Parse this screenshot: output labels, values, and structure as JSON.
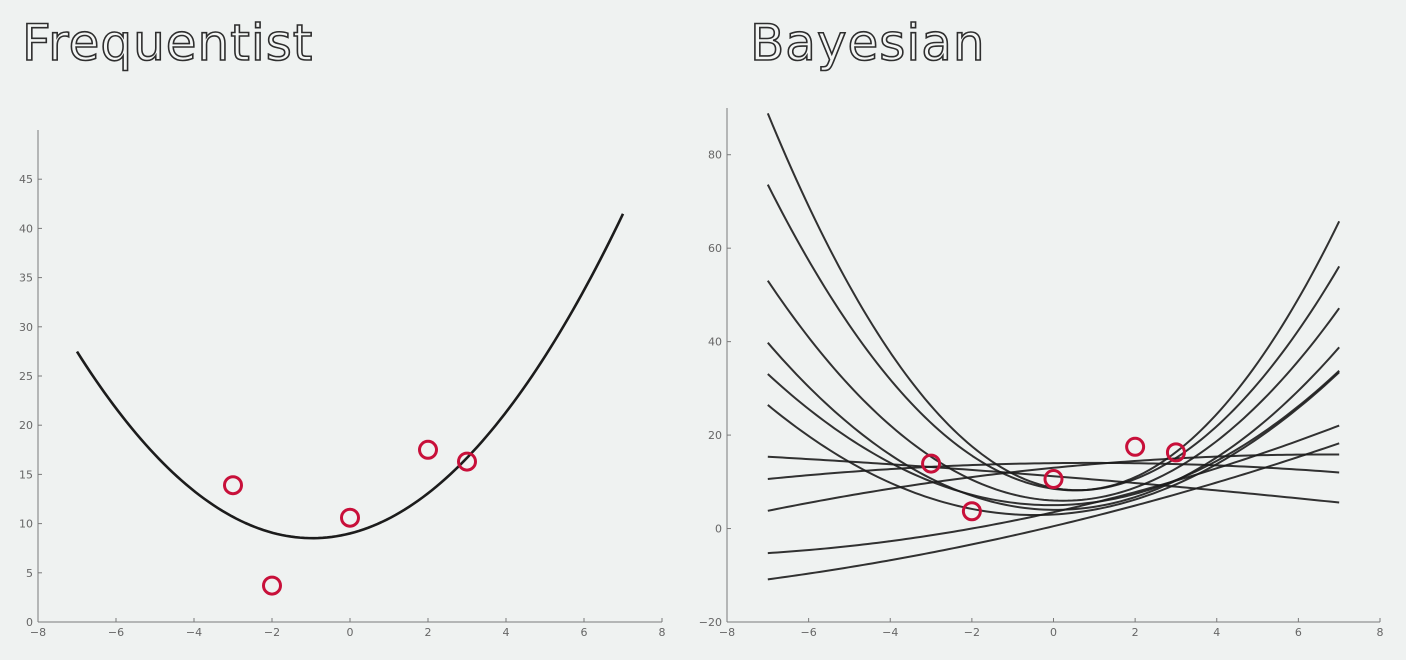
{
  "chart_data": [
    {
      "type": "scatter",
      "title": "Frequentist",
      "xlabel": "",
      "ylabel": "",
      "xlim": [
        -8,
        8
      ],
      "ylim": [
        0,
        50
      ],
      "xticks": [
        -8,
        -6,
        -4,
        -2,
        0,
        2,
        4,
        6,
        8
      ],
      "yticks": [
        0,
        5,
        10,
        15,
        20,
        25,
        30,
        35,
        40,
        45
      ],
      "grid": false,
      "points": {
        "x": [
          -3,
          -2,
          0,
          2,
          3
        ],
        "y": [
          13.9,
          3.7,
          10.6,
          17.5,
          16.3
        ]
      },
      "fit_curves": [
        {
          "x_range": [
            -7,
            7
          ],
          "coeffs": [
            0.52,
            1.0,
            9.0
          ]
        }
      ]
    },
    {
      "type": "scatter",
      "title": "Bayesian",
      "xlabel": "",
      "ylabel": "",
      "xlim": [
        -8,
        8
      ],
      "ylim": [
        -20,
        90
      ],
      "xticks": [
        -8,
        -6,
        -4,
        -2,
        0,
        2,
        4,
        6,
        8
      ],
      "yticks": [
        -20,
        0,
        20,
        40,
        60,
        80
      ],
      "grid": false,
      "points": {
        "x": [
          -3,
          -2,
          0,
          2,
          3
        ],
        "y": [
          13.9,
          3.7,
          10.6,
          17.5,
          16.3
        ]
      },
      "sample_curves": [
        {
          "x_range": [
            -7,
            7
          ],
          "coeffs": [
            1.4,
            -1.65,
            8.7
          ]
        },
        {
          "x_range": [
            -7,
            7
          ],
          "coeffs": [
            1.15,
            -1.25,
            8.5
          ]
        },
        {
          "x_range": [
            -7,
            7
          ],
          "coeffs": [
            0.9,
            -0.42,
            6.0
          ]
        },
        {
          "x_range": [
            -7,
            7
          ],
          "coeffs": [
            0.72,
            -0.07,
            4.0
          ]
        },
        {
          "x_range": [
            -7,
            7
          ],
          "coeffs": [
            0.58,
            0.05,
            5.0
          ]
        },
        {
          "x_range": [
            -7,
            7
          ],
          "coeffs": [
            0.55,
            0.5,
            3.0
          ]
        },
        {
          "x_range": [
            -7,
            7
          ],
          "coeffs": [
            -0.015,
            -0.7,
            11.2
          ]
        },
        {
          "x_range": [
            -7,
            7
          ],
          "coeffs": [
            -0.055,
            0.1,
            14.0
          ]
        },
        {
          "x_range": [
            -7,
            7
          ],
          "coeffs": [
            -0.065,
            0.86,
            13.0
          ]
        },
        {
          "x_range": [
            -7,
            7
          ],
          "coeffs": [
            0.1,
            1.95,
            3.5
          ]
        },
        {
          "x_range": [
            -7,
            7
          ],
          "coeffs": [
            0.065,
            2.08,
            0.5
          ]
        }
      ]
    }
  ],
  "colors": {
    "curve": "#1c1c1c",
    "point": "#c8103a",
    "axis": "#7a7a7a",
    "background": "#eff2f1"
  }
}
